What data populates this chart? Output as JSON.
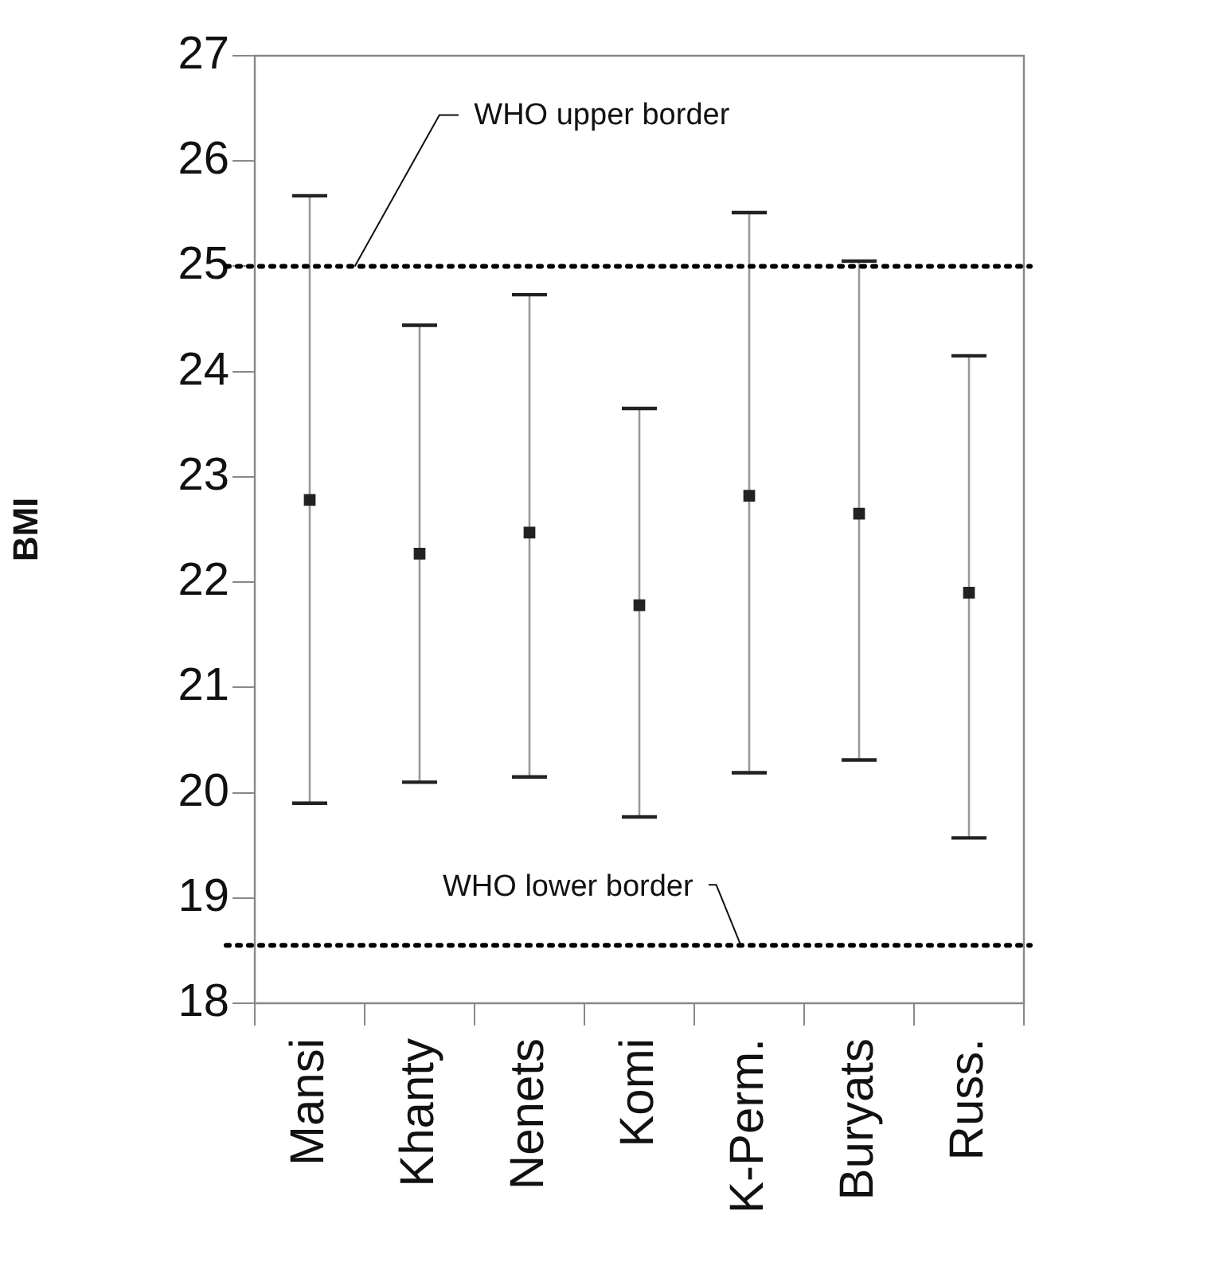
{
  "chart_data": {
    "type": "scatter",
    "ylabel": "BMI",
    "categories": [
      "Mansi",
      "Khanty",
      "Nenets",
      "Komi",
      "K-Perm.",
      "Buryats",
      "Russ."
    ],
    "values": [
      22.78,
      22.27,
      22.47,
      21.78,
      22.82,
      22.65,
      21.9
    ],
    "errors": [
      [
        19.9,
        25.67
      ],
      [
        20.1,
        24.44
      ],
      [
        20.15,
        24.73
      ],
      [
        19.77,
        23.65
      ],
      [
        20.19,
        25.51
      ],
      [
        20.31,
        25.05
      ],
      [
        19.57,
        24.15
      ]
    ],
    "color": "#222222",
    "marker": "square",
    "ylim": [
      18,
      27
    ],
    "yticks": [
      18,
      19,
      20,
      21,
      22,
      23,
      24,
      25,
      26,
      27
    ],
    "grid": false,
    "legend": false,
    "ref_lines": [
      {
        "axis": "y",
        "value": 25,
        "label": "WHO upper border",
        "color": "#000000",
        "line_style": "dotted"
      },
      {
        "axis": "y",
        "value": 18.55,
        "label": "WHO lower border",
        "color": "#000000",
        "line_style": "dotted"
      }
    ]
  }
}
